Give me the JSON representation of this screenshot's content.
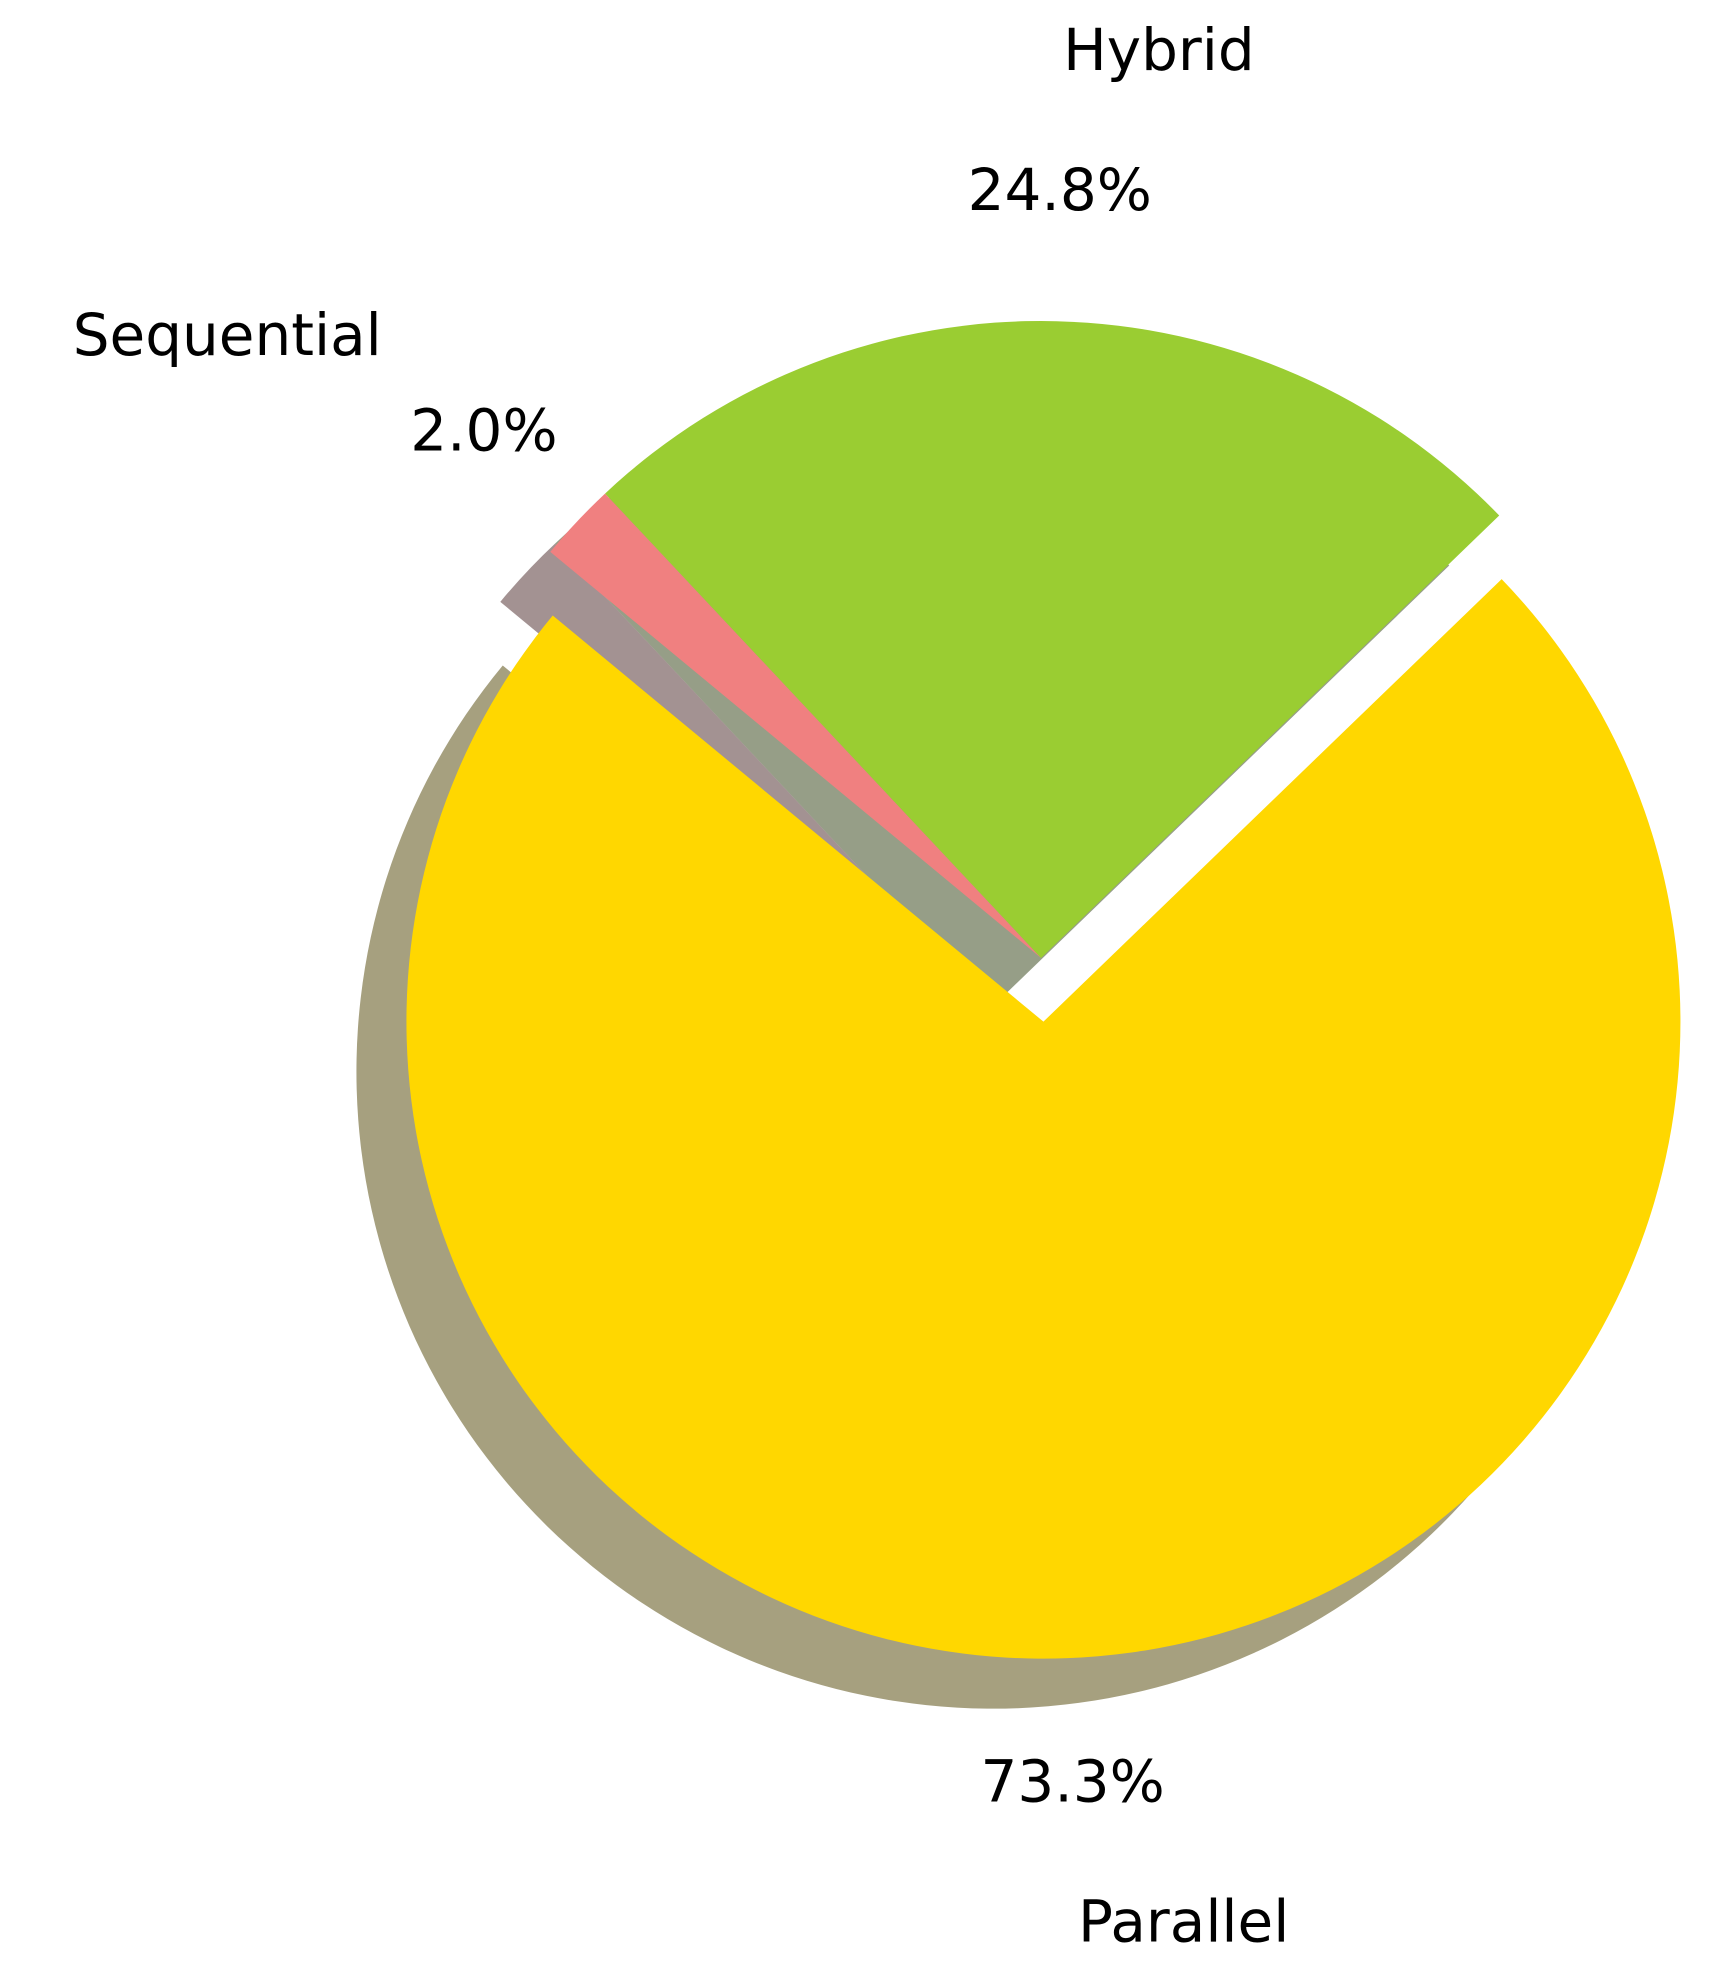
{
  "chart_data": {
    "type": "pie",
    "categories": [
      "Hybrid",
      "Sequential",
      "Parallel"
    ],
    "values": [
      24.8,
      2.0,
      73.3
    ],
    "value_labels": [
      "24.8%",
      "2.0%",
      "73.3%"
    ],
    "colors": [
      "#9acd32",
      "#f08080",
      "#ffd700"
    ],
    "startangle": 44,
    "explode": [
      0,
      0,
      0.1
    ],
    "shadow": true
  }
}
